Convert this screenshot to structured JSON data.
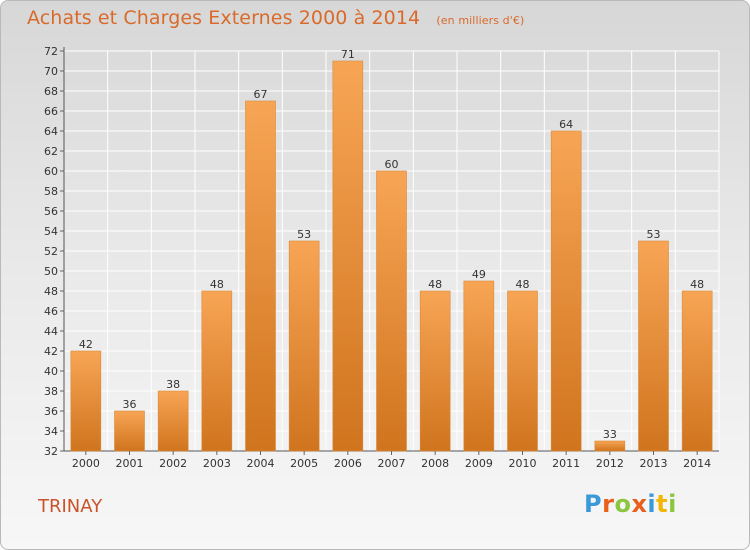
{
  "title": "Achats et Charges Externes 2000 à 2014",
  "subtitle": "(en milliers d'€)",
  "commune": "TRINAY",
  "logo": {
    "text": "Proxiti",
    "letter_colors": [
      "#3a9ad9",
      "#e8601c",
      "#8cc63f",
      "#e8601c",
      "#3a9ad9",
      "#f2b705",
      "#8cc63f"
    ]
  },
  "colors": {
    "bar_light": "#f7a555",
    "bar_dark": "#d0741e",
    "title": "#d96a2a"
  },
  "chart_data": {
    "type": "bar",
    "categories": [
      "2000",
      "2001",
      "2002",
      "2003",
      "2004",
      "2005",
      "2006",
      "2007",
      "2008",
      "2009",
      "2010",
      "2011",
      "2012",
      "2013",
      "2014"
    ],
    "values": [
      42,
      36,
      38,
      48,
      67,
      53,
      71,
      60,
      48,
      49,
      48,
      64,
      33,
      53,
      48
    ],
    "ylim": [
      32,
      72
    ],
    "yticks": [
      32,
      34,
      36,
      38,
      40,
      42,
      44,
      46,
      48,
      50,
      52,
      54,
      56,
      58,
      60,
      62,
      64,
      66,
      68,
      70,
      72
    ],
    "grid": true,
    "xlabel": "",
    "ylabel": ""
  }
}
